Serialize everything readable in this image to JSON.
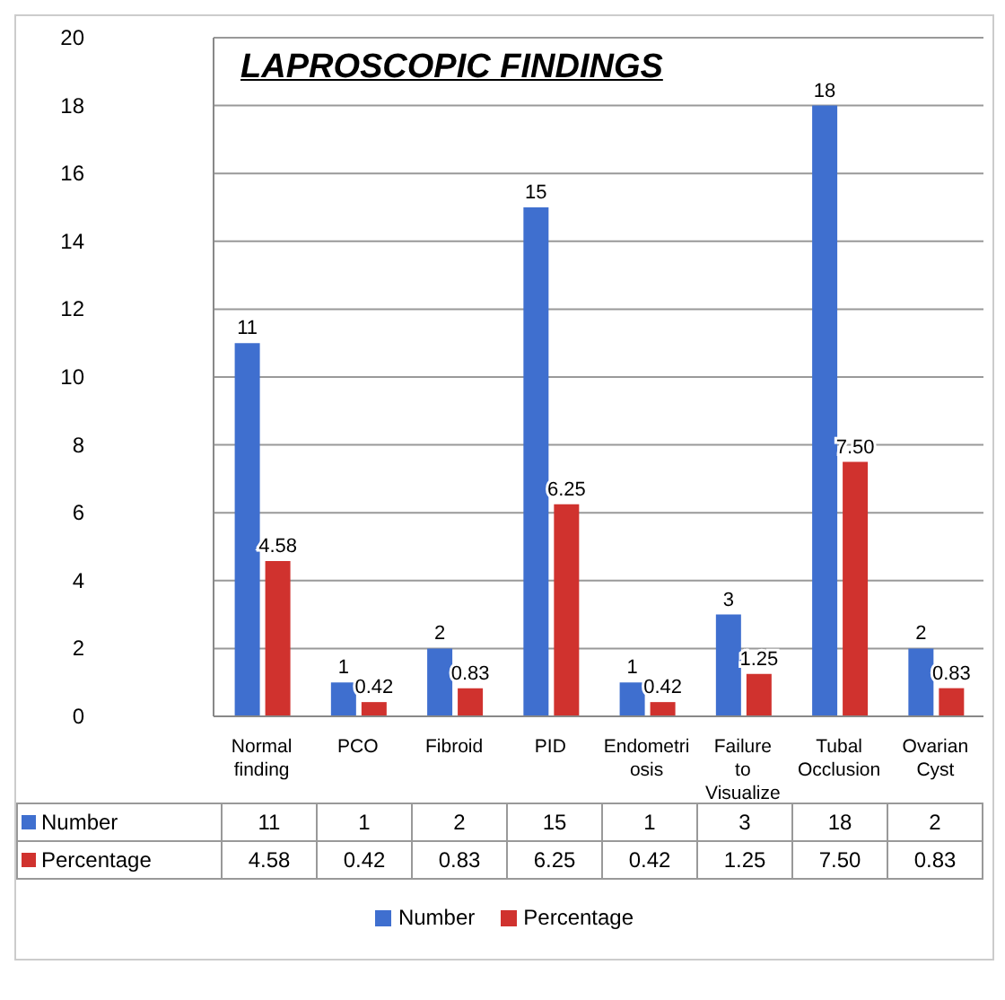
{
  "chart_data": {
    "type": "bar",
    "title": "LAPROSCOPIC FINDINGS",
    "categories": [
      "Normal finding",
      "PCO",
      "Fibroid",
      "PID",
      "Endometriosis",
      "Failure to Visualize",
      "Tubal Occlusion",
      "Ovarian Cyst"
    ],
    "series": [
      {
        "name": "Number",
        "color": "#3f6fcf",
        "values": [
          11,
          1,
          2,
          15,
          1,
          3,
          18,
          2
        ],
        "value_labels": [
          "11",
          "1",
          "2",
          "15",
          "1",
          "3",
          "18",
          "2"
        ]
      },
      {
        "name": "Percentage",
        "color": "#d0322e",
        "values": [
          4.58,
          0.42,
          0.83,
          6.25,
          0.42,
          1.25,
          7.5,
          0.83
        ],
        "value_labels": [
          "4.58",
          "0.42",
          "0.83",
          "6.25",
          "0.42",
          "1.25",
          "7.50",
          "0.83"
        ]
      }
    ],
    "ylim": [
      0,
      20
    ],
    "yticks": [
      0,
      2,
      4,
      6,
      8,
      10,
      12,
      14,
      16,
      18,
      20
    ],
    "grid": "y",
    "legend": "bottom"
  }
}
